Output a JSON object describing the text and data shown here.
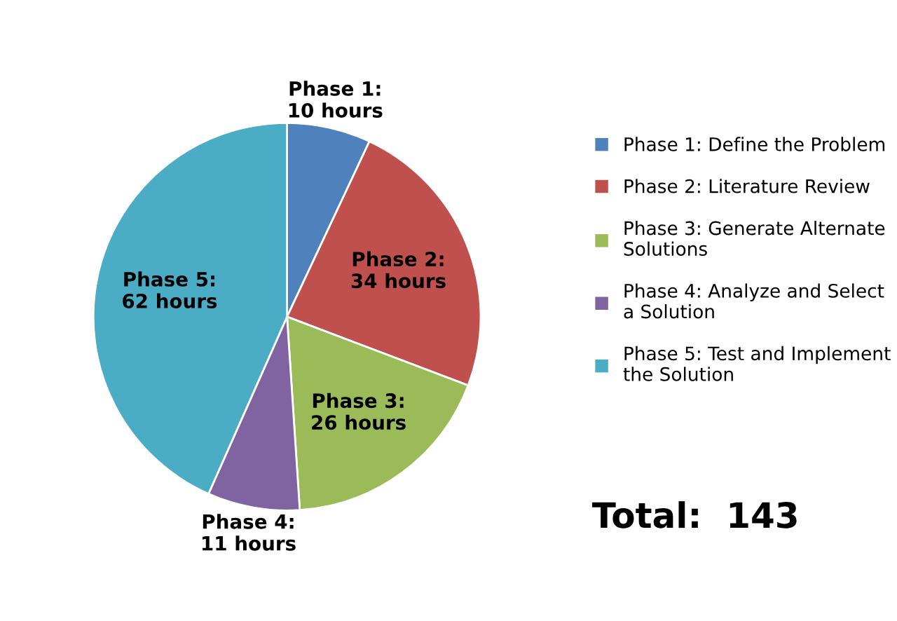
{
  "chart_data": {
    "type": "pie",
    "categories": [
      "Phase 1: Define the Problem",
      "Phase 2: Literature Review",
      "Phase 3: Generate Alternate Solutions",
      "Phase 4: Analyze and Select a Solution",
      "Phase 5: Test and Implement the Solution"
    ],
    "values": [
      10,
      34,
      26,
      11,
      62
    ],
    "colors": [
      "#4f81bd",
      "#c0504d",
      "#9bbb59",
      "#8064a2",
      "#4bacc6"
    ],
    "value_labels": [
      "Phase 1:\n10 hours",
      "Phase 2:\n34 hours",
      "Phase 3:\n26 hours",
      "Phase 4:\n11 hours",
      "Phase 5:\n62 hours"
    ],
    "legend": "right",
    "annotations": [
      "Total:  143"
    ]
  }
}
